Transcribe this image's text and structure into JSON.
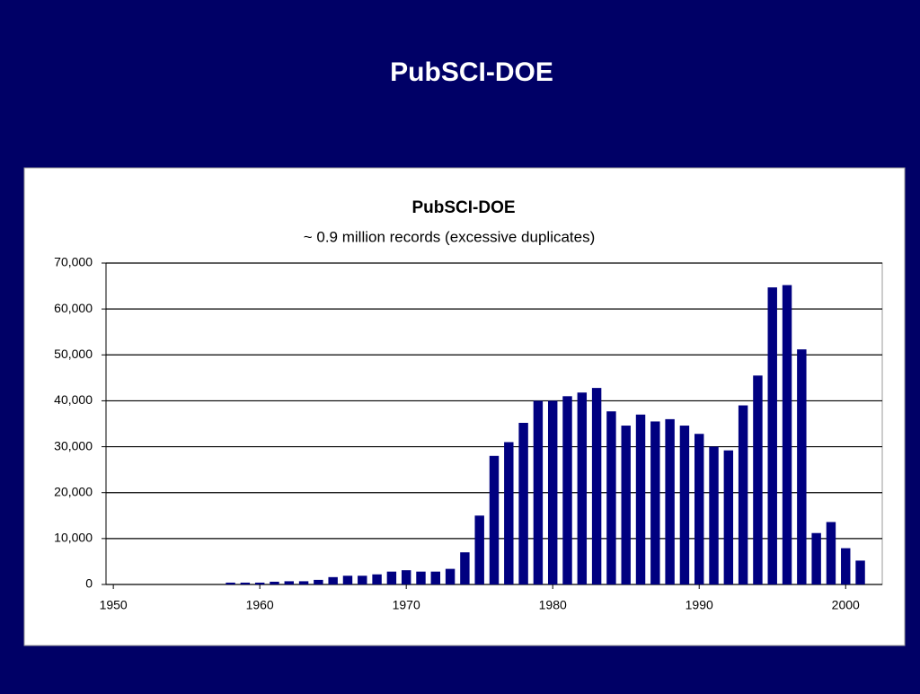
{
  "slide_title": "PubSCI-DOE",
  "chart_data": {
    "type": "bar",
    "title": "PubSCI-DOE",
    "subtitle": "~ 0.9 million records (excessive duplicates)",
    "x": [
      1958,
      1959,
      1960,
      1961,
      1962,
      1963,
      1964,
      1965,
      1966,
      1967,
      1968,
      1969,
      1970,
      1971,
      1972,
      1973,
      1974,
      1975,
      1976,
      1977,
      1978,
      1979,
      1980,
      1981,
      1982,
      1983,
      1984,
      1985,
      1986,
      1987,
      1988,
      1989,
      1990,
      1991,
      1992,
      1993,
      1994,
      1995,
      1996,
      1997,
      1998,
      1999,
      2000,
      2001
    ],
    "values": [
      400,
      400,
      400,
      600,
      700,
      700,
      1000,
      1600,
      1900,
      1900,
      2200,
      2800,
      3100,
      2800,
      2800,
      3400,
      7000,
      15000,
      28000,
      31000,
      35200,
      40000,
      40000,
      41000,
      41800,
      42800,
      37700,
      34600,
      37000,
      35500,
      36000,
      34600,
      32800,
      30000,
      29200,
      39000,
      45500,
      64700,
      65200,
      51200,
      11200,
      13600,
      7900,
      5200
    ],
    "color": "#000080",
    "xlim": [
      1949.5,
      2002.5
    ],
    "xticks": [
      1950,
      1960,
      1970,
      1980,
      1990,
      2000
    ],
    "ylim": [
      0,
      70000
    ],
    "yticks": [
      0,
      {
        "value": 10000,
        "label": "10,000"
      },
      {
        "value": 20000,
        "label": "20,000"
      },
      {
        "value": 30000,
        "label": "30,000"
      },
      {
        "value": 40000,
        "label": "40,000"
      },
      {
        "value": 50000,
        "label": "50,000"
      },
      {
        "value": 60000,
        "label": "60,000"
      },
      {
        "value": 70000,
        "label": "70,000"
      }
    ],
    "grid": true
  }
}
